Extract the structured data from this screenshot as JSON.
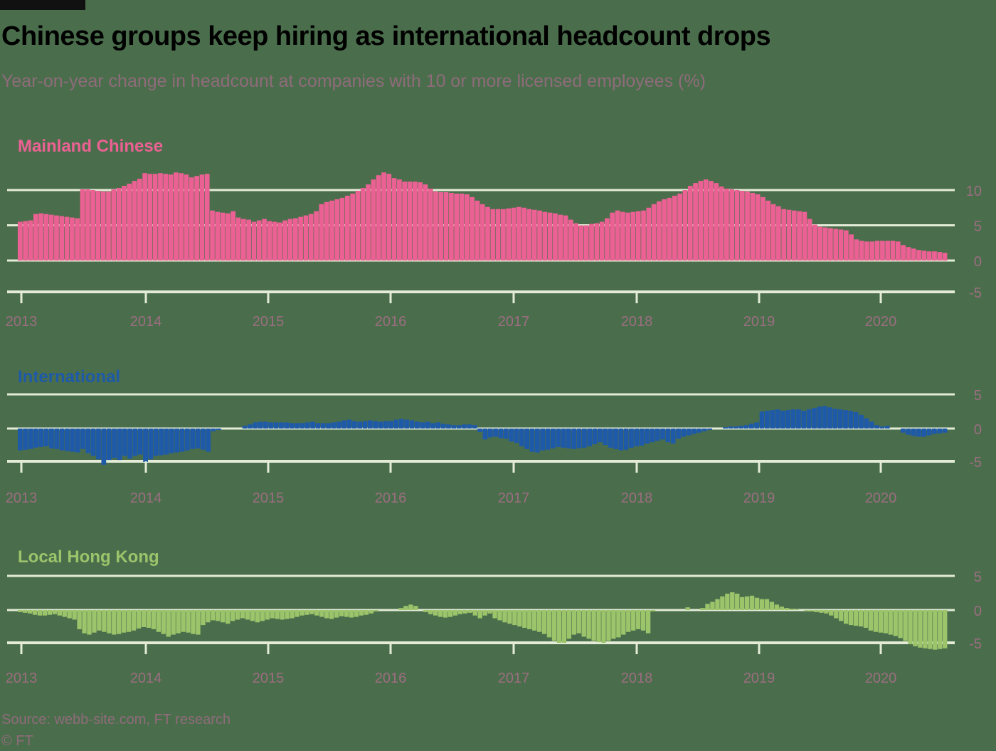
{
  "title": "Chinese groups keep hiring as international headcount drops",
  "subtitle": "Year-on-year change in headcount at companies with 10 or more licensed employees (%)",
  "source": "Source: webb-site.com, FT research",
  "copyright": "© FT",
  "colors": {
    "background": "#4a6e4c",
    "gridline": "#e4ecd8",
    "tick_label": "#9c6d80",
    "mainland": "#ec6193",
    "international": "#1f5aa8",
    "local": "#9cc46b"
  },
  "chart_data": [
    {
      "type": "bar",
      "panel": "mainland",
      "title": "Mainland Chinese",
      "x_ticks": [
        "2013",
        "2014",
        "2015",
        "2016",
        "2017",
        "2018",
        "2019",
        "2020"
      ],
      "y_ticks": [
        10,
        5,
        0,
        -5
      ],
      "ylim": [
        -5,
        10
      ],
      "x_range": [
        "2013-01",
        "2020-06"
      ],
      "series": [
        {
          "start": "2013-01",
          "frequency": "monthly",
          "values": [
            5.5,
            5.6,
            5.7,
            6.6,
            6.7,
            6.6,
            6.5,
            6.4,
            6.3,
            6.2,
            6.1,
            6.0,
            10.1,
            10.1,
            10.0,
            9.9,
            9.8,
            9.8,
            10.1,
            10.3,
            10.6,
            10.9,
            11.3,
            11.6,
            12.4,
            12.3,
            12.3,
            12.4,
            12.3,
            12.2,
            12.5,
            12.4,
            12.2,
            11.8,
            12.0,
            12.2,
            12.3,
            7.1,
            6.9,
            6.8,
            6.7,
            7.0,
            6.1,
            5.9,
            5.8,
            5.5,
            5.7,
            5.9,
            5.6,
            5.5,
            5.4,
            5.7,
            5.9,
            6.0,
            6.2,
            6.4,
            6.6,
            7.0,
            8.0,
            8.3,
            8.5,
            8.7,
            8.9,
            9.2,
            9.5,
            9.9,
            10.3,
            10.8,
            11.5,
            12.1,
            12.5,
            12.3,
            11.7,
            11.5,
            11.2,
            11.2,
            11.2,
            11.1,
            10.8,
            10.2,
            9.8,
            9.7,
            9.7,
            9.6,
            9.5,
            9.5,
            9.4,
            9.0,
            8.5,
            8.0,
            7.6,
            7.3,
            7.3,
            7.3,
            7.4,
            7.5,
            7.6,
            7.5,
            7.3,
            7.2,
            7.1,
            6.9,
            6.8,
            6.7,
            6.5,
            6.4,
            5.8,
            5.3,
            5.0,
            5.0,
            5.2,
            5.3,
            5.5,
            6.0,
            6.8,
            7.1,
            6.9,
            6.8,
            6.9,
            7.0,
            7.1,
            7.5,
            8.0,
            8.4,
            8.7,
            8.9,
            9.2,
            9.5,
            10.0,
            10.6,
            11.0,
            11.3,
            11.5,
            11.3,
            11.0,
            10.5,
            10.2,
            10.1,
            10.0,
            9.9,
            9.8,
            9.6,
            9.4,
            9.0,
            8.5,
            8.0,
            7.7,
            7.3,
            7.2,
            7.1,
            7.0,
            6.9,
            5.9,
            5.1,
            4.8,
            4.7,
            4.6,
            4.5,
            4.4,
            4.3,
            3.7,
            3.0,
            2.8,
            2.7,
            2.7,
            2.8,
            2.8,
            2.8,
            2.8,
            2.7,
            2.2,
            1.9,
            1.7,
            1.5,
            1.4,
            1.3,
            1.3,
            1.2,
            1.1
          ]
        }
      ]
    },
    {
      "type": "bar",
      "panel": "international",
      "title": "International",
      "x_ticks": [
        "2013",
        "2014",
        "2015",
        "2016",
        "2017",
        "2018",
        "2019",
        "2020"
      ],
      "y_ticks": [
        5,
        0,
        -5
      ],
      "ylim": [
        -5,
        5
      ],
      "x_range": [
        "2013-01",
        "2020-06"
      ],
      "series": [
        {
          "start": "2013-01",
          "frequency": "monthly",
          "values": [
            -3.2,
            -3.1,
            -3.0,
            -2.8,
            -2.7,
            -2.6,
            -2.9,
            -3.0,
            -3.2,
            -3.3,
            -3.4,
            -3.5,
            -3.0,
            -3.6,
            -4.0,
            -4.5,
            -5.3,
            -4.6,
            -4.3,
            -4.6,
            -4.0,
            -4.4,
            -4.0,
            -3.8,
            -4.9,
            -4.5,
            -4.0,
            -3.9,
            -3.8,
            -3.6,
            -3.5,
            -3.4,
            -3.2,
            -3.0,
            -2.9,
            -3.1,
            -3.4,
            -0.4,
            -0.2,
            0.0,
            0.0,
            0.0,
            0.0,
            0.4,
            0.6,
            0.9,
            1.0,
            1.0,
            0.9,
            0.9,
            0.9,
            0.9,
            0.8,
            0.8,
            0.8,
            0.9,
            1.0,
            0.8,
            0.8,
            0.8,
            0.9,
            1.0,
            1.2,
            1.3,
            1.1,
            1.0,
            1.1,
            1.2,
            1.1,
            1.0,
            1.1,
            1.1,
            1.3,
            1.4,
            1.3,
            1.2,
            1.0,
            0.9,
            1.0,
            0.8,
            0.9,
            0.7,
            0.6,
            0.5,
            0.5,
            0.6,
            0.6,
            0.5,
            -0.5,
            -1.6,
            -1.3,
            -1.2,
            -1.4,
            -1.5,
            -1.9,
            -2.1,
            -2.6,
            -3.0,
            -3.4,
            -3.5,
            -3.2,
            -3.1,
            -2.9,
            -2.7,
            -2.8,
            -2.9,
            -3.0,
            -2.9,
            -2.8,
            -2.6,
            -2.3,
            -2.0,
            -2.4,
            -2.8,
            -3.0,
            -3.2,
            -3.1,
            -2.8,
            -2.6,
            -2.5,
            -2.2,
            -2.0,
            -1.8,
            -1.6,
            -2.0,
            -2.2,
            -1.5,
            -1.2,
            -1.0,
            -0.8,
            -0.6,
            -0.4,
            -0.2,
            0.0,
            0.0,
            0.2,
            0.3,
            0.3,
            0.4,
            0.5,
            0.7,
            0.9,
            2.5,
            2.6,
            2.7,
            2.8,
            2.6,
            2.7,
            2.8,
            2.8,
            2.6,
            2.8,
            3.0,
            3.2,
            3.3,
            3.1,
            2.9,
            2.8,
            2.7,
            2.6,
            2.4,
            2.0,
            1.5,
            1.0,
            0.5,
            0.3,
            0.4,
            0.0,
            0.0,
            -0.6,
            -0.9,
            -1.1,
            -1.2,
            -1.2,
            -1.0,
            -0.8,
            -0.7,
            -0.6
          ]
        }
      ]
    },
    {
      "type": "bar",
      "panel": "local",
      "title": "Local Hong Kong",
      "x_ticks": [
        "2013",
        "2014",
        "2015",
        "2016",
        "2017",
        "2018",
        "2019",
        "2020"
      ],
      "y_ticks": [
        5,
        0,
        -5
      ],
      "ylim": [
        -5,
        5
      ],
      "x_range": [
        "2013-01",
        "2020-06"
      ],
      "series": [
        {
          "start": "2013-01",
          "frequency": "monthly",
          "values": [
            -0.3,
            -0.4,
            -0.5,
            -0.7,
            -0.8,
            -0.8,
            -0.7,
            -0.6,
            -0.8,
            -1.0,
            -1.2,
            -1.4,
            -2.8,
            -3.4,
            -3.6,
            -3.3,
            -3.0,
            -3.2,
            -3.4,
            -3.6,
            -3.5,
            -3.3,
            -3.2,
            -3.0,
            -2.7,
            -2.5,
            -2.6,
            -2.8,
            -3.2,
            -3.5,
            -3.9,
            -3.6,
            -3.4,
            -3.2,
            -3.3,
            -3.5,
            -3.6,
            -2.2,
            -1.8,
            -1.5,
            -1.6,
            -1.8,
            -2.0,
            -1.6,
            -1.4,
            -1.2,
            -1.4,
            -1.6,
            -1.8,
            -1.6,
            -1.4,
            -1.2,
            -1.3,
            -1.4,
            -1.3,
            -1.2,
            -1.0,
            -0.8,
            -0.7,
            -0.6,
            -0.8,
            -1.0,
            -1.2,
            -1.3,
            -1.1,
            -0.9,
            -1.0,
            -1.1,
            -1.0,
            -0.8,
            -0.7,
            -0.5,
            -0.2,
            0.0,
            0.0,
            0.0,
            0.0,
            0.3,
            0.6,
            0.8,
            0.6,
            0.0,
            -0.3,
            -0.6,
            -0.8,
            -1.0,
            -1.1,
            -1.0,
            -0.8,
            -0.6,
            -0.5,
            -0.4,
            -0.8,
            -1.2,
            -0.8,
            -0.5,
            -1.2,
            -1.5,
            -1.8,
            -2.0,
            -2.2,
            -2.4,
            -2.6,
            -2.8,
            -3.0,
            -3.2,
            -3.5,
            -4.0,
            -4.5,
            -4.8,
            -4.8,
            -4.2,
            -3.6,
            -3.4,
            -3.9,
            -4.2,
            -4.5,
            -4.7,
            -4.8,
            -4.5,
            -4.2,
            -4.0,
            -3.6,
            -3.2,
            -3.0,
            -2.8,
            -3.0,
            -3.4,
            -0.2,
            0.0,
            0.0,
            0.0,
            0.0,
            0.0,
            0.0,
            0.4,
            0.0,
            0.0,
            0.3,
            0.9,
            1.2,
            1.6,
            2.0,
            2.4,
            2.6,
            2.4,
            1.9,
            2.0,
            2.1,
            1.8,
            1.6,
            1.6,
            1.2,
            0.8,
            0.5,
            0.3,
            0.2,
            0.1,
            0.0,
            -0.1,
            -0.2,
            -0.3,
            -0.4,
            -0.5,
            -0.8,
            -1.2,
            -1.6,
            -2.0,
            -2.2,
            -2.3,
            -2.4,
            -2.6,
            -3.0,
            -3.2,
            -3.3,
            -3.4,
            -3.6,
            -3.8,
            -4.1,
            -4.5,
            -5.0,
            -5.3,
            -5.5,
            -5.6,
            -5.7,
            -5.8,
            -5.7,
            -5.6
          ]
        }
      ]
    }
  ]
}
